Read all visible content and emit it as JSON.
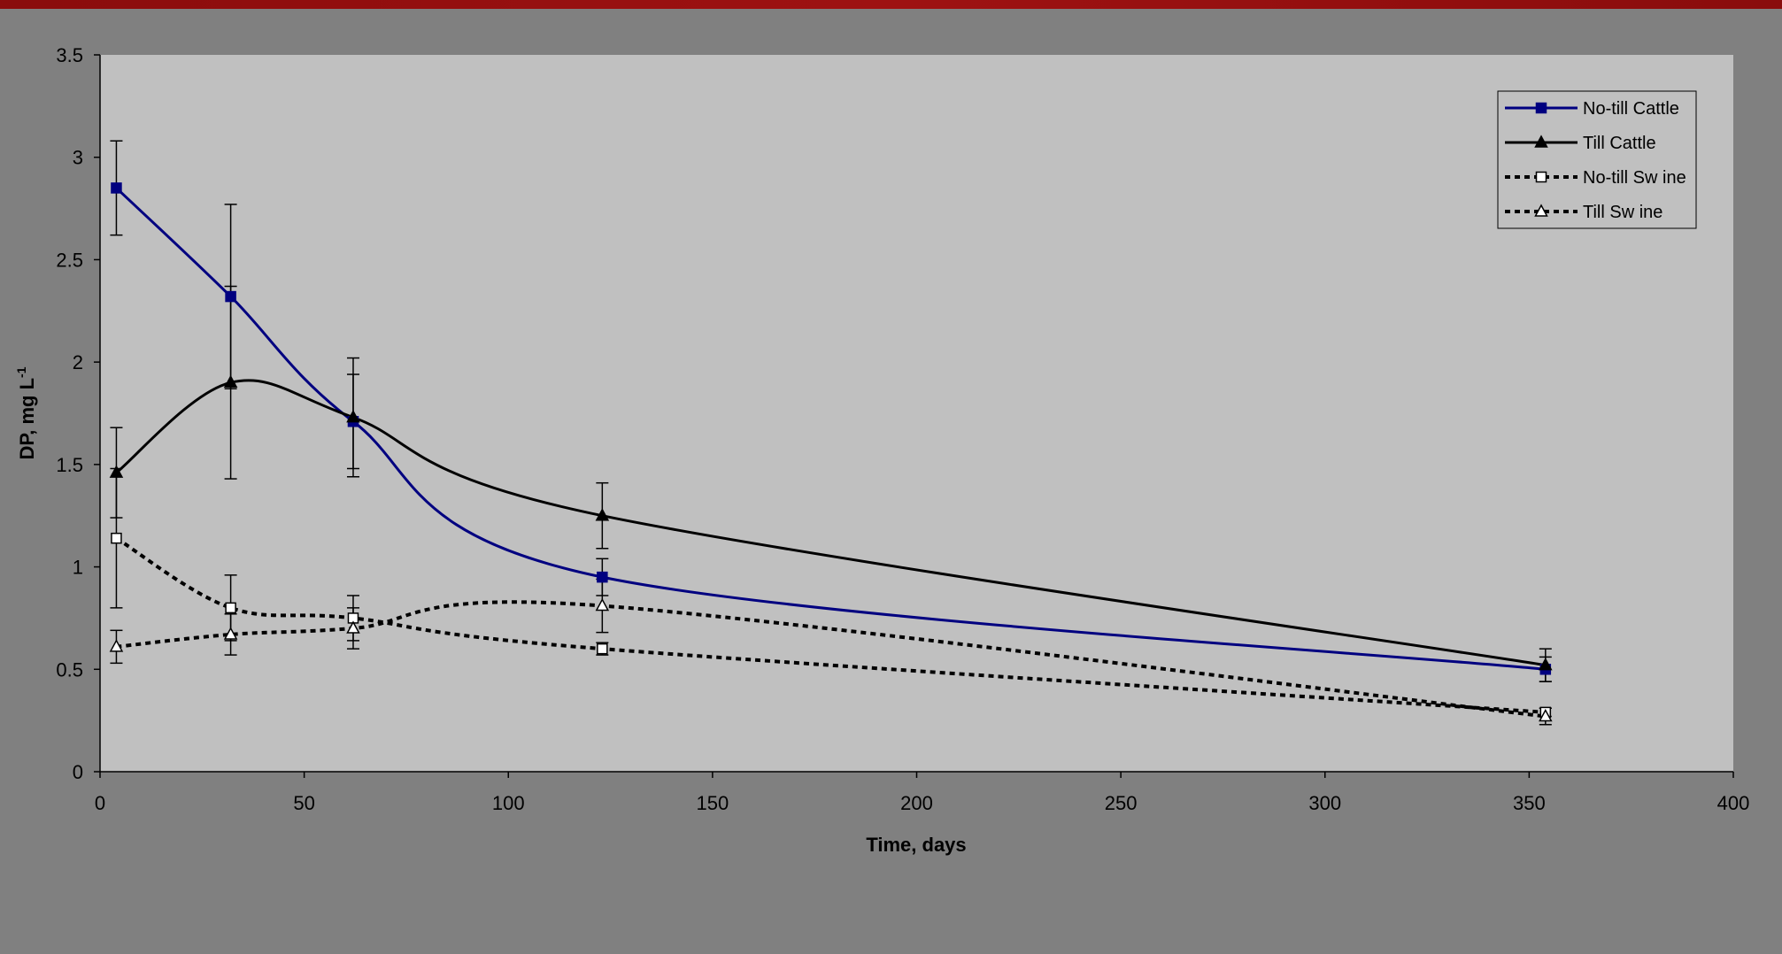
{
  "chart_data": {
    "type": "line",
    "xlabel": "Time, days",
    "ylabel": "DP, mg L",
    "ylabel_superscript": "-1",
    "xlim": [
      0,
      400
    ],
    "ylim": [
      0,
      3.5
    ],
    "x_ticks": [
      "0",
      "50",
      "100",
      "150",
      "200",
      "250",
      "300",
      "350",
      "400"
    ],
    "y_ticks": [
      "0",
      "0.5",
      "1",
      "1.5",
      "2",
      "2.5",
      "3",
      "3.5"
    ],
    "grid": false,
    "legend_position": "top-right",
    "x": [
      4,
      32,
      62,
      123,
      354
    ],
    "series": [
      {
        "name": "No-till Cattle",
        "color": "#000080",
        "line_style": "solid",
        "marker": "filled-square",
        "values": [
          2.85,
          2.32,
          1.71,
          0.95,
          0.5
        ],
        "error": [
          0.23,
          0.45,
          0.23,
          0.09,
          0.06
        ]
      },
      {
        "name": "Till Cattle",
        "color": "#000000",
        "line_style": "solid",
        "marker": "filled-triangle",
        "values": [
          1.46,
          1.9,
          1.73,
          1.25,
          0.52
        ],
        "error": [
          0.22,
          0.47,
          0.29,
          0.16,
          0.08
        ]
      },
      {
        "name": "No-till Sw ine",
        "color": "#000000",
        "line_style": "dashed",
        "marker": "open-square",
        "values": [
          1.14,
          0.8,
          0.75,
          0.6,
          0.29
        ],
        "error": [
          0.34,
          0.16,
          0.11,
          0.03,
          0.02
        ]
      },
      {
        "name": "Till Sw ine",
        "color": "#000000",
        "line_style": "dashed",
        "marker": "open-triangle",
        "values": [
          0.61,
          0.67,
          0.7,
          0.81,
          0.27
        ],
        "error": [
          0.08,
          0.1,
          0.1,
          0.13,
          0.04
        ]
      }
    ]
  }
}
